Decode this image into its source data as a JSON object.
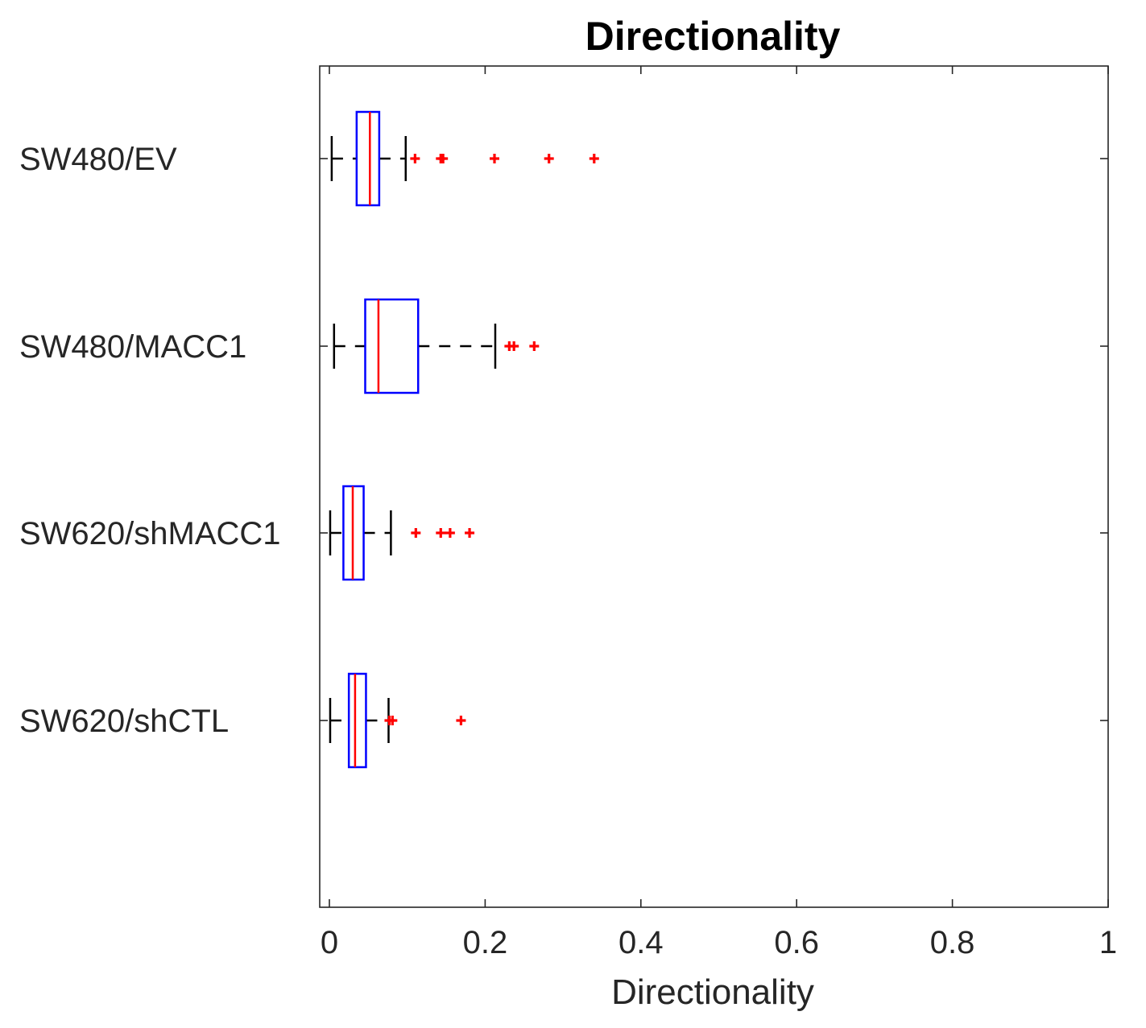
{
  "chart_data": {
    "type": "boxplot",
    "orientation": "horizontal",
    "title": "Directionality",
    "xlabel": "Directionality",
    "ylabel": "",
    "xlim": [
      0,
      1
    ],
    "xticks": [
      0,
      0.2,
      0.4,
      0.6,
      0.8,
      1
    ],
    "xtick_labels": [
      "0",
      "0.2",
      "0.4",
      "0.6",
      "0.8",
      "1"
    ],
    "grid": false,
    "categories": [
      "SW480/EV",
      "SW480/MACC1",
      "SW620/shMACC1",
      "SW620/shCTL"
    ],
    "series": [
      {
        "name": "SW480/EV",
        "whisker_low": 0.003,
        "q1": 0.035,
        "median": 0.052,
        "q3": 0.064,
        "whisker_high": 0.098,
        "outliers": [
          0.11,
          0.143,
          0.146,
          0.212,
          0.282,
          0.34
        ]
      },
      {
        "name": "SW480/MACC1",
        "whisker_low": 0.006,
        "q1": 0.046,
        "median": 0.063,
        "q3": 0.114,
        "whisker_high": 0.213,
        "outliers": [
          0.231,
          0.237,
          0.263
        ]
      },
      {
        "name": "SW620/shMACC1",
        "whisker_low": 0.001,
        "q1": 0.018,
        "median": 0.03,
        "q3": 0.044,
        "whisker_high": 0.079,
        "outliers": [
          0.111,
          0.143,
          0.155,
          0.18
        ]
      },
      {
        "name": "SW620/shCTL",
        "whisker_low": 0.001,
        "q1": 0.025,
        "median": 0.033,
        "q3": 0.047,
        "whisker_high": 0.076,
        "outliers": [
          0.077,
          0.081,
          0.169
        ]
      }
    ],
    "colors": {
      "box": "#0000ff",
      "median": "#ff0000",
      "whisker": "#000000",
      "outlier": "#ff0000",
      "axis": "#262626"
    }
  }
}
